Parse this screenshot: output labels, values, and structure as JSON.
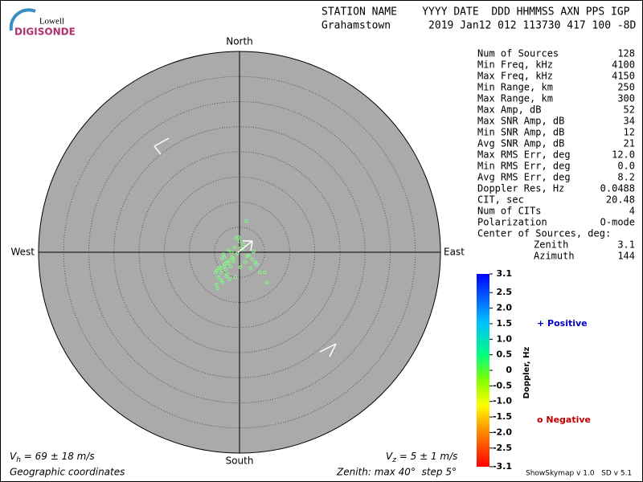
{
  "logo": {
    "top": "Lowell",
    "bottom": "DIGISONDE"
  },
  "header": {
    "line1": "STATION NAME    YYYY DATE  DDD HHMMSS AXN PPS IGP",
    "line2": "Grahamstown      2019 Jan12 012 113730 417 100 -8D"
  },
  "chart_data": {
    "type": "skymap",
    "directions": {
      "north": "North",
      "south": "South",
      "east": "East",
      "west": "West"
    },
    "rlim": [
      0,
      40
    ],
    "rticks": [
      5,
      10,
      15,
      20,
      25,
      30,
      35
    ],
    "points": {
      "color": "#80ff80",
      "x": [
        -1.5,
        -2,
        -2.6,
        -3,
        -3.5,
        -4,
        -4.5,
        -3.2,
        -2.2,
        -1,
        0,
        0.8,
        1.5,
        2.5,
        3.2,
        -1.8,
        -2.8,
        -3.6,
        -4.2,
        -2.4,
        -1.2,
        -0.4,
        0.6,
        1.8,
        2.8,
        -3,
        -3.8,
        -2,
        -0.8,
        0.2,
        -4.6,
        -3.4,
        -2.6,
        -1.6,
        -0.2,
        1.2,
        2.2,
        5.4,
        4,
        -0.8,
        1.4,
        -2.2,
        -1.2,
        -3,
        0.2,
        3.4,
        5,
        -4.8,
        -4.4,
        -3.6
      ],
      "y": [
        -1,
        -1.6,
        -2,
        -2.4,
        -1.2,
        -3,
        -3.6,
        -0.4,
        0.4,
        1,
        2.2,
        1.6,
        -0.8,
        -1.4,
        -2,
        -2.8,
        -3.4,
        -4,
        -5,
        -4.4,
        -1.8,
        -0.2,
        0.6,
        -0.6,
        0.2,
        -2.8,
        -3.2,
        -5.4,
        -5,
        -3,
        -6.4,
        -6,
        -4.8,
        0,
        3,
        -2,
        -3.2,
        -6,
        -4,
        2.8,
        6.2,
        -2.2,
        -1.2,
        -1,
        0.8,
        -2.4,
        -4,
        -4,
        -7.2,
        -5.6
      ]
    },
    "colorbar": {
      "label": "Doppler, Hz",
      "clim": [
        -3.1,
        3.1
      ],
      "ticks": [
        3.1,
        2.5,
        {
          "value": 2,
          "label": "2.0"
        },
        1.5,
        {
          "value": 1,
          "label": "1.0"
        },
        0.5,
        0,
        -0.5,
        {
          "value": -1,
          "label": "-1.0"
        },
        -1.5,
        {
          "value": -2,
          "label": "-2.0"
        },
        -2.5,
        -3.1
      ]
    },
    "legend": {
      "positive": "+ Positive",
      "negative": "o Negative"
    }
  },
  "stats": [
    [
      "Num of Sources",
      "128"
    ],
    [
      "Min Freq, kHz",
      "4100"
    ],
    [
      "Max Freq, kHz",
      "4150"
    ],
    [
      "Min Range, km",
      "250"
    ],
    [
      "Max Range, km",
      "300"
    ],
    [
      "Max Amp, dB",
      "52"
    ],
    [
      "Max SNR Amp, dB",
      "34"
    ],
    [
      "Min SNR Amp, dB",
      "12"
    ],
    [
      "Avg SNR Amp, dB",
      "21"
    ],
    [
      "Max RMS Err, deg",
      "12.0"
    ],
    [
      "Min RMS Err, deg",
      "0.0"
    ],
    [
      "Avg RMS Err, deg",
      "8.2"
    ],
    [
      "Doppler Res, Hz",
      "0.0488"
    ],
    [
      "CIT, sec",
      "20.48"
    ],
    [
      "Num of CITs",
      "4"
    ],
    [
      "Polarization",
      "O-mode"
    ]
  ],
  "center": {
    "title": "Center of Sources, deg:",
    "rows": [
      [
        "Zenith",
        "3.1"
      ],
      [
        "Azimuth",
        "144"
      ]
    ]
  },
  "footer": {
    "vh": "V",
    "vh_sub": "h",
    "vh_text": " = 69 ± 18 m/s",
    "vz": "V",
    "vz_sub": "z",
    "vz_text": " = 5 ± 1 m/s",
    "coords": "Geographic coordinates",
    "zenith": "Zenith: max 40°  step 5°",
    "version": "ShowSkymap v 1.0   SD v 5.1"
  }
}
